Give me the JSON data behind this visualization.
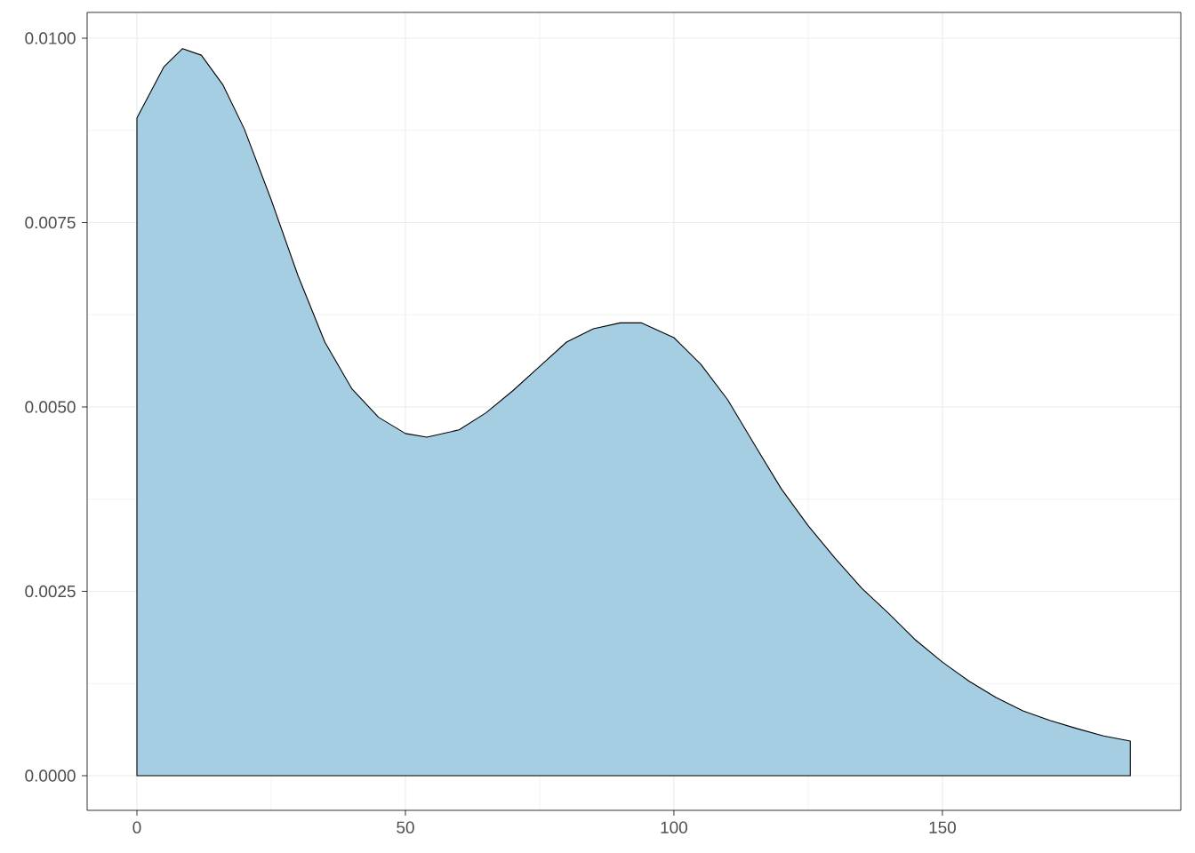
{
  "chart_data": {
    "type": "area",
    "x": [
      0,
      5,
      8.5,
      12,
      16,
      20,
      25,
      30,
      35,
      40,
      45,
      50,
      54,
      60,
      65,
      70,
      75,
      80,
      85,
      90,
      94,
      100,
      105,
      110,
      115,
      120,
      125,
      130,
      135,
      140,
      145,
      150,
      155,
      160,
      165,
      170,
      175,
      180,
      185
    ],
    "series": [
      {
        "color": "#a6cee3",
        "values": [
          0.00892,
          0.00961,
          0.00986,
          0.00977,
          0.00937,
          0.00877,
          0.00781,
          0.00678,
          0.00588,
          0.00525,
          0.00486,
          0.00464,
          0.00459,
          0.00469,
          0.00492,
          0.00522,
          0.00555,
          0.00588,
          0.00606,
          0.00614,
          0.00614,
          0.00594,
          0.00558,
          0.0051,
          0.00449,
          0.00389,
          0.00339,
          0.00295,
          0.00254,
          0.0022,
          0.00184,
          0.00154,
          0.00128,
          0.00106,
          0.00088,
          0.00075,
          0.00064,
          0.00054,
          0.00047
        ]
      }
    ],
    "xlim": [
      -9.27,
      194.4
    ],
    "ylim": [
      -0.00047,
      0.01035
    ],
    "xticks": [
      0,
      50,
      100,
      150
    ],
    "yticks": [
      {
        "value": 0,
        "label": "0.0000"
      },
      {
        "value": 0.0025,
        "label": "0.0025"
      },
      {
        "value": 0.005,
        "label": "0.0050"
      },
      {
        "value": 0.0075,
        "label": "0.0075"
      },
      {
        "value": 0.01,
        "label": "0.0100"
      }
    ],
    "grid": true
  }
}
